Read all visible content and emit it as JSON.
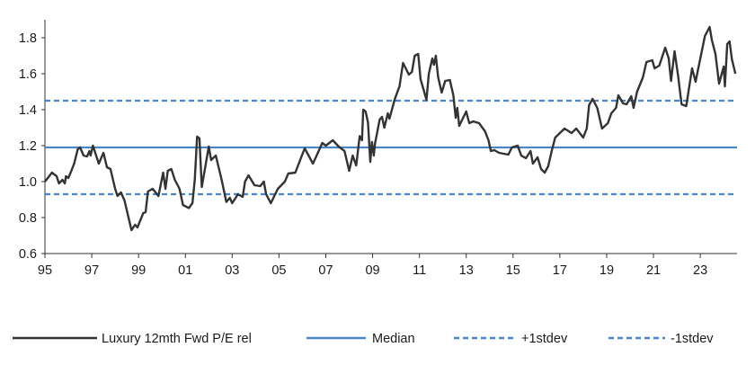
{
  "chart_data": {
    "type": "line",
    "title": "",
    "xlabel": "",
    "ylabel": "",
    "xlim": [
      1995,
      2024.6
    ],
    "ylim": [
      0.6,
      1.9
    ],
    "x_tick_labels": [
      "95",
      "97",
      "99",
      "01",
      "03",
      "05",
      "07",
      "09",
      "11",
      "13",
      "15",
      "17",
      "19",
      "21",
      "23"
    ],
    "x_tick_years": [
      1995,
      1997,
      1999,
      2001,
      2003,
      2005,
      2007,
      2009,
      2011,
      2013,
      2015,
      2017,
      2019,
      2021,
      2023
    ],
    "y_ticks": [
      0.6,
      0.8,
      1.0,
      1.2,
      1.4,
      1.6,
      1.8
    ],
    "y_tick_labels": [
      "0.6",
      "0.8",
      "1.0",
      "1.2",
      "1.4",
      "1.6",
      "1.8"
    ],
    "grid": false,
    "legend_position": "bottom",
    "series": [
      {
        "name": "Luxury 12mth Fwd P/E rel",
        "color": "#333333",
        "style": "solid",
        "points": [
          [
            1995.0,
            1.0
          ],
          [
            1995.3,
            1.05
          ],
          [
            1995.5,
            1.03
          ],
          [
            1995.6,
            0.99
          ],
          [
            1995.75,
            1.01
          ],
          [
            1995.85,
            0.99
          ],
          [
            1995.9,
            1.03
          ],
          [
            1996.0,
            1.02
          ],
          [
            1996.1,
            1.05
          ],
          [
            1996.25,
            1.1
          ],
          [
            1996.4,
            1.18
          ],
          [
            1996.5,
            1.19
          ],
          [
            1996.65,
            1.145
          ],
          [
            1996.8,
            1.14
          ],
          [
            1996.9,
            1.17
          ],
          [
            1996.95,
            1.145
          ],
          [
            1997.05,
            1.2
          ],
          [
            1997.15,
            1.16
          ],
          [
            1997.3,
            1.1
          ],
          [
            1997.5,
            1.16
          ],
          [
            1997.65,
            1.08
          ],
          [
            1997.8,
            1.07
          ],
          [
            1998.0,
            0.96
          ],
          [
            1998.1,
            0.92
          ],
          [
            1998.25,
            0.94
          ],
          [
            1998.4,
            0.895
          ],
          [
            1998.7,
            0.73
          ],
          [
            1998.85,
            0.76
          ],
          [
            1998.95,
            0.745
          ],
          [
            1999.2,
            0.825
          ],
          [
            1999.3,
            0.83
          ],
          [
            1999.4,
            0.945
          ],
          [
            1999.6,
            0.96
          ],
          [
            1999.85,
            0.92
          ],
          [
            2000.05,
            1.05
          ],
          [
            2000.15,
            0.96
          ],
          [
            2000.25,
            1.06
          ],
          [
            2000.4,
            1.07
          ],
          [
            2000.55,
            1.01
          ],
          [
            2000.75,
            0.96
          ],
          [
            2000.9,
            0.87
          ],
          [
            2001.15,
            0.853
          ],
          [
            2001.3,
            0.88
          ],
          [
            2001.4,
            1.01
          ],
          [
            2001.5,
            1.25
          ],
          [
            2001.6,
            1.24
          ],
          [
            2001.7,
            0.97
          ],
          [
            2002.0,
            1.195
          ],
          [
            2002.1,
            1.12
          ],
          [
            2002.3,
            1.145
          ],
          [
            2002.55,
            1.01
          ],
          [
            2002.75,
            0.887
          ],
          [
            2002.9,
            0.91
          ],
          [
            2003.0,
            0.88
          ],
          [
            2003.25,
            0.93
          ],
          [
            2003.45,
            0.915
          ],
          [
            2003.55,
            1.0
          ],
          [
            2003.7,
            1.035
          ],
          [
            2003.95,
            0.98
          ],
          [
            2004.2,
            0.975
          ],
          [
            2004.35,
            1.0
          ],
          [
            2004.45,
            0.93
          ],
          [
            2004.65,
            0.88
          ],
          [
            2004.95,
            0.96
          ],
          [
            2005.25,
            1.0
          ],
          [
            2005.4,
            1.045
          ],
          [
            2005.7,
            1.05
          ],
          [
            2005.95,
            1.135
          ],
          [
            2006.1,
            1.185
          ],
          [
            2006.45,
            1.1
          ],
          [
            2006.85,
            1.215
          ],
          [
            2007.0,
            1.2
          ],
          [
            2007.3,
            1.23
          ],
          [
            2007.55,
            1.195
          ],
          [
            2007.8,
            1.17
          ],
          [
            2008.0,
            1.06
          ],
          [
            2008.15,
            1.145
          ],
          [
            2008.3,
            1.09
          ],
          [
            2008.45,
            1.253
          ],
          [
            2008.55,
            1.23
          ],
          [
            2008.6,
            1.4
          ],
          [
            2008.7,
            1.39
          ],
          [
            2008.8,
            1.33
          ],
          [
            2008.9,
            1.11
          ],
          [
            2008.97,
            1.22
          ],
          [
            2009.05,
            1.145
          ],
          [
            2009.1,
            1.21
          ],
          [
            2009.3,
            1.345
          ],
          [
            2009.4,
            1.36
          ],
          [
            2009.5,
            1.3
          ],
          [
            2009.65,
            1.38
          ],
          [
            2009.72,
            1.35
          ],
          [
            2009.95,
            1.46
          ],
          [
            2010.15,
            1.53
          ],
          [
            2010.3,
            1.66
          ],
          [
            2010.55,
            1.595
          ],
          [
            2010.68,
            1.61
          ],
          [
            2010.8,
            1.7
          ],
          [
            2010.95,
            1.71
          ],
          [
            2011.05,
            1.57
          ],
          [
            2011.3,
            1.455
          ],
          [
            2011.4,
            1.6
          ],
          [
            2011.55,
            1.685
          ],
          [
            2011.62,
            1.65
          ],
          [
            2011.7,
            1.7
          ],
          [
            2011.8,
            1.58
          ],
          [
            2011.95,
            1.495
          ],
          [
            2012.1,
            1.56
          ],
          [
            2012.3,
            1.565
          ],
          [
            2012.45,
            1.48
          ],
          [
            2012.55,
            1.355
          ],
          [
            2012.62,
            1.41
          ],
          [
            2012.7,
            1.31
          ],
          [
            2013.0,
            1.39
          ],
          [
            2013.13,
            1.325
          ],
          [
            2013.3,
            1.335
          ],
          [
            2013.55,
            1.325
          ],
          [
            2013.8,
            1.28
          ],
          [
            2013.95,
            1.23
          ],
          [
            2014.05,
            1.17
          ],
          [
            2014.2,
            1.175
          ],
          [
            2014.4,
            1.16
          ],
          [
            2014.8,
            1.15
          ],
          [
            2014.95,
            1.19
          ],
          [
            2015.2,
            1.2
          ],
          [
            2015.35,
            1.145
          ],
          [
            2015.55,
            1.13
          ],
          [
            2015.75,
            1.17
          ],
          [
            2015.85,
            1.1
          ],
          [
            2016.05,
            1.135
          ],
          [
            2016.2,
            1.07
          ],
          [
            2016.35,
            1.05
          ],
          [
            2016.5,
            1.085
          ],
          [
            2016.65,
            1.17
          ],
          [
            2016.8,
            1.245
          ],
          [
            2017.0,
            1.27
          ],
          [
            2017.2,
            1.295
          ],
          [
            2017.5,
            1.27
          ],
          [
            2017.7,
            1.295
          ],
          [
            2018.0,
            1.245
          ],
          [
            2018.15,
            1.295
          ],
          [
            2018.25,
            1.425
          ],
          [
            2018.4,
            1.46
          ],
          [
            2018.6,
            1.41
          ],
          [
            2018.8,
            1.295
          ],
          [
            2019.05,
            1.325
          ],
          [
            2019.2,
            1.38
          ],
          [
            2019.4,
            1.41
          ],
          [
            2019.5,
            1.48
          ],
          [
            2019.7,
            1.435
          ],
          [
            2019.85,
            1.43
          ],
          [
            2020.05,
            1.475
          ],
          [
            2020.15,
            1.41
          ],
          [
            2020.3,
            1.5
          ],
          [
            2020.55,
            1.58
          ],
          [
            2020.7,
            1.665
          ],
          [
            2020.95,
            1.675
          ],
          [
            2021.05,
            1.63
          ],
          [
            2021.25,
            1.645
          ],
          [
            2021.5,
            1.745
          ],
          [
            2021.65,
            1.685
          ],
          [
            2021.75,
            1.56
          ],
          [
            2021.9,
            1.725
          ],
          [
            2022.05,
            1.59
          ],
          [
            2022.2,
            1.43
          ],
          [
            2022.4,
            1.42
          ],
          [
            2022.65,
            1.63
          ],
          [
            2022.8,
            1.555
          ],
          [
            2022.9,
            1.62
          ],
          [
            2023.2,
            1.81
          ],
          [
            2023.4,
            1.86
          ],
          [
            2023.5,
            1.785
          ],
          [
            2023.65,
            1.71
          ],
          [
            2023.8,
            1.545
          ],
          [
            2024.0,
            1.64
          ],
          [
            2024.05,
            1.53
          ],
          [
            2024.15,
            1.765
          ],
          [
            2024.25,
            1.78
          ],
          [
            2024.35,
            1.68
          ],
          [
            2024.5,
            1.6
          ]
        ]
      },
      {
        "name": "Median",
        "color": "#4a86c5",
        "style": "solid",
        "value": 1.19
      },
      {
        "name": "+1stdev",
        "color": "#4a86c5",
        "style": "dashed",
        "value": 1.45
      },
      {
        "name": "-1stdev",
        "color": "#4a86c5",
        "style": "dashed",
        "value": 0.93
      }
    ]
  }
}
